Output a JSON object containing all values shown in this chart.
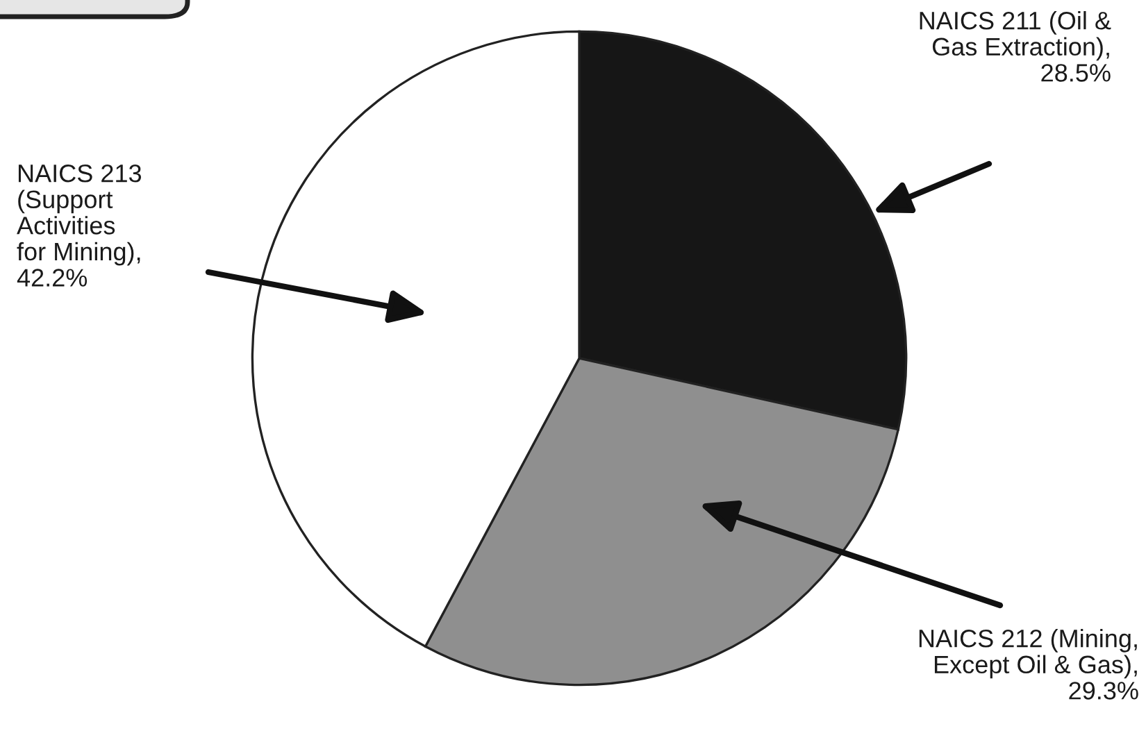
{
  "chart_data": {
    "type": "pie",
    "categories": [
      "NAICS 211 (Oil &\nGas Extraction)",
      "NAICS 212 (Mining,\nExcept Oil & Gas)",
      "NAICS 213\n(Support\nActivities\nfor Mining)"
    ],
    "values": [
      28.5,
      29.3,
      42.2
    ],
    "value_labels": [
      ",\n28.5%",
      ",\n29.3%",
      ",\n42.2%"
    ],
    "colors": [
      "#161616",
      "#8f8f8f",
      "#ffffff"
    ]
  }
}
